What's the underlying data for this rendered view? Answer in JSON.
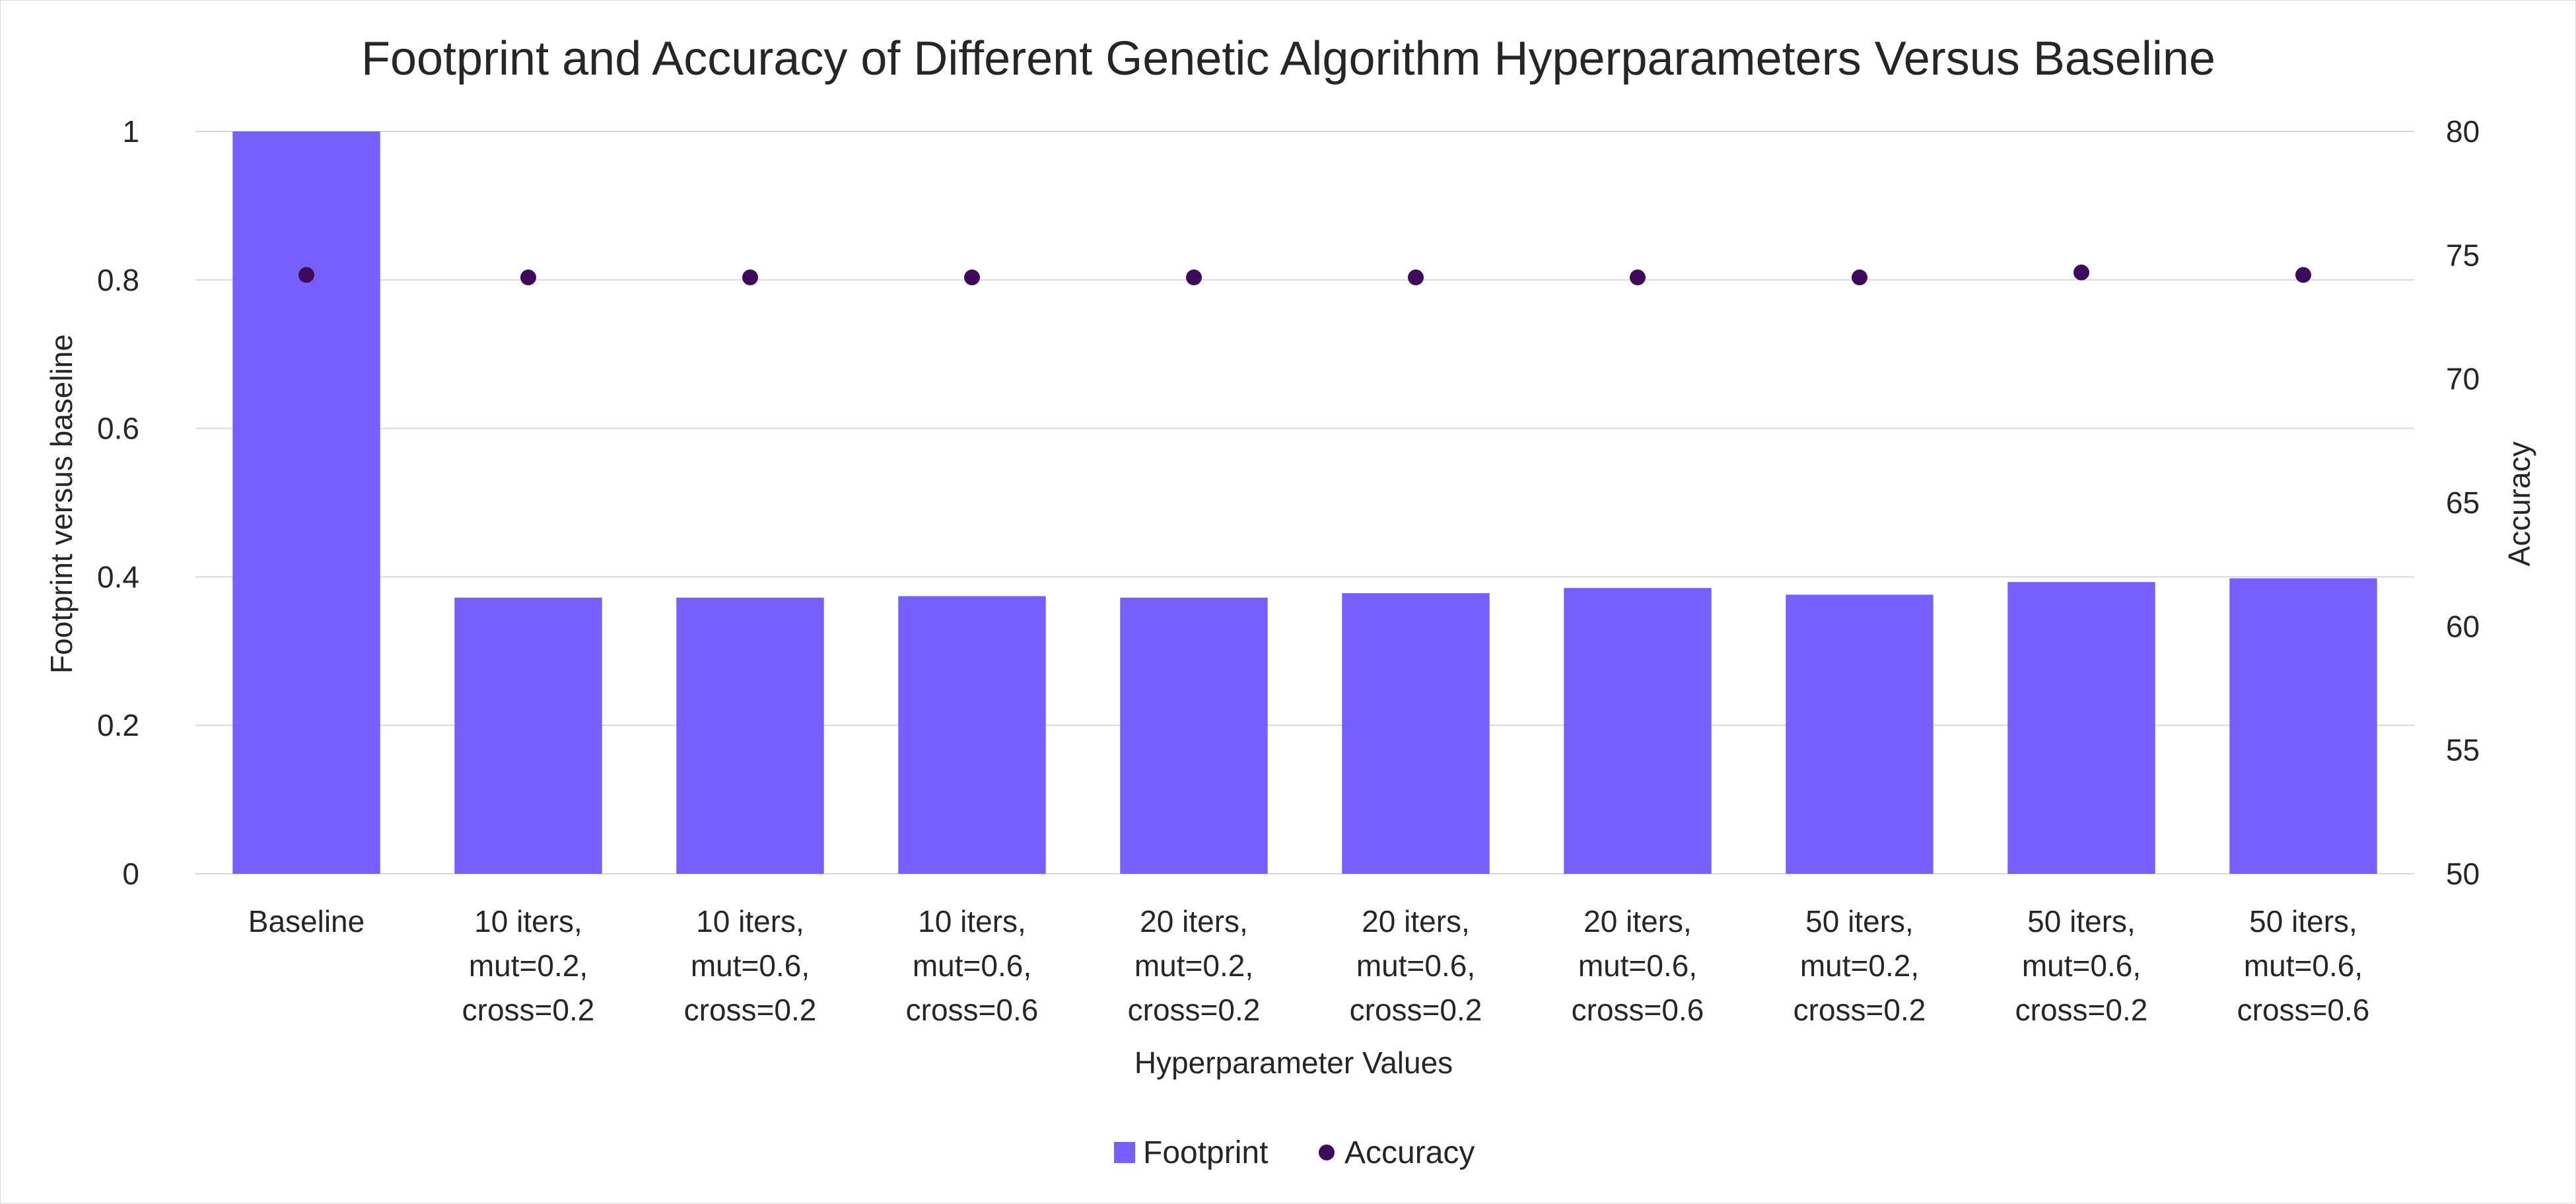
{
  "chart_data": {
    "type": "bar",
    "title": "Footprint and Accuracy of Different Genetic Algorithm Hyperparameters Versus Baseline",
    "xlabel": "Hyperparameter Values",
    "ylabel": "Footprint versus baseline",
    "y2label": "Accuracy",
    "categories": [
      [
        "Baseline"
      ],
      [
        "10 iters,",
        "mut=0.2,",
        "cross=0.2"
      ],
      [
        "10 iters,",
        "mut=0.6,",
        "cross=0.2"
      ],
      [
        "10 iters,",
        "mut=0.6,",
        "cross=0.6"
      ],
      [
        "20 iters,",
        "mut=0.2,",
        "cross=0.2"
      ],
      [
        "20 iters,",
        "mut=0.6,",
        "cross=0.2"
      ],
      [
        "20 iters,",
        "mut=0.6,",
        "cross=0.6"
      ],
      [
        "50 iters,",
        "mut=0.2,",
        "cross=0.2"
      ],
      [
        "50 iters,",
        "mut=0.6,",
        "cross=0.2"
      ],
      [
        "50 iters,",
        "mut=0.6,",
        "cross=0.6"
      ]
    ],
    "series": [
      {
        "name": "Footprint",
        "kind": "bar",
        "axis": "left",
        "color": "#7560ff",
        "values": [
          1.0,
          0.372,
          0.372,
          0.374,
          0.372,
          0.378,
          0.385,
          0.376,
          0.393,
          0.398
        ]
      },
      {
        "name": "Accuracy",
        "kind": "scatter",
        "axis": "right",
        "color": "#3d0a5c",
        "values": [
          74.2,
          74.1,
          74.1,
          74.1,
          74.1,
          74.1,
          74.1,
          74.1,
          74.3,
          74.2
        ]
      }
    ],
    "ylim": [
      0,
      1
    ],
    "y2lim": [
      50,
      80
    ],
    "yticks": [
      "0",
      "0.2",
      "0.4",
      "0.6",
      "0.8",
      "1"
    ],
    "y2ticks": [
      "50",
      "55",
      "60",
      "65",
      "70",
      "75",
      "80"
    ],
    "grid": true,
    "legend_position": "bottom"
  }
}
